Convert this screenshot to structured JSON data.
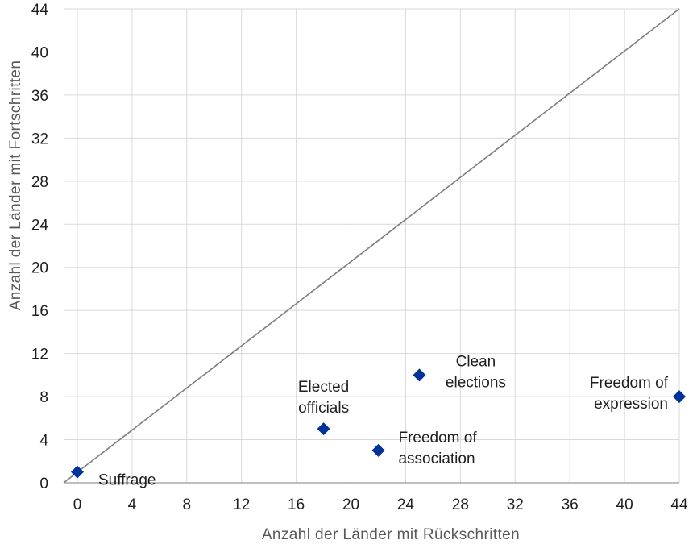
{
  "chart_data": {
    "type": "scatter",
    "xlabel": "Anzahl der Länder mit Rückschritten",
    "ylabel": "Anzahl der Länder mit Fortschritten",
    "xlim": [
      -1,
      44
    ],
    "ylim": [
      0,
      44
    ],
    "xticks": [
      0,
      4,
      8,
      12,
      16,
      20,
      24,
      28,
      32,
      36,
      40,
      44
    ],
    "yticks": [
      0,
      4,
      8,
      12,
      16,
      20,
      24,
      28,
      32,
      36,
      40,
      44
    ],
    "grid": true,
    "reference_line": {
      "from": [
        -1,
        0
      ],
      "to": [
        44,
        44
      ]
    },
    "points": [
      {
        "x": 0,
        "y": 1,
        "label": [
          "Suffrage"
        ]
      },
      {
        "x": 18,
        "y": 5,
        "label": [
          "Elected",
          "officials"
        ]
      },
      {
        "x": 22,
        "y": 3,
        "label": [
          "Freedom of",
          "association"
        ]
      },
      {
        "x": 25,
        "y": 10,
        "label": [
          "Clean",
          "elections"
        ]
      },
      {
        "x": 44,
        "y": 8,
        "label": [
          "Freedom of",
          "expression"
        ]
      }
    ],
    "colors": {
      "marker": "#003399",
      "reference_line": "#7f7f7f",
      "grid": "#d9d9d9",
      "axis": "#7f7f7f"
    }
  }
}
